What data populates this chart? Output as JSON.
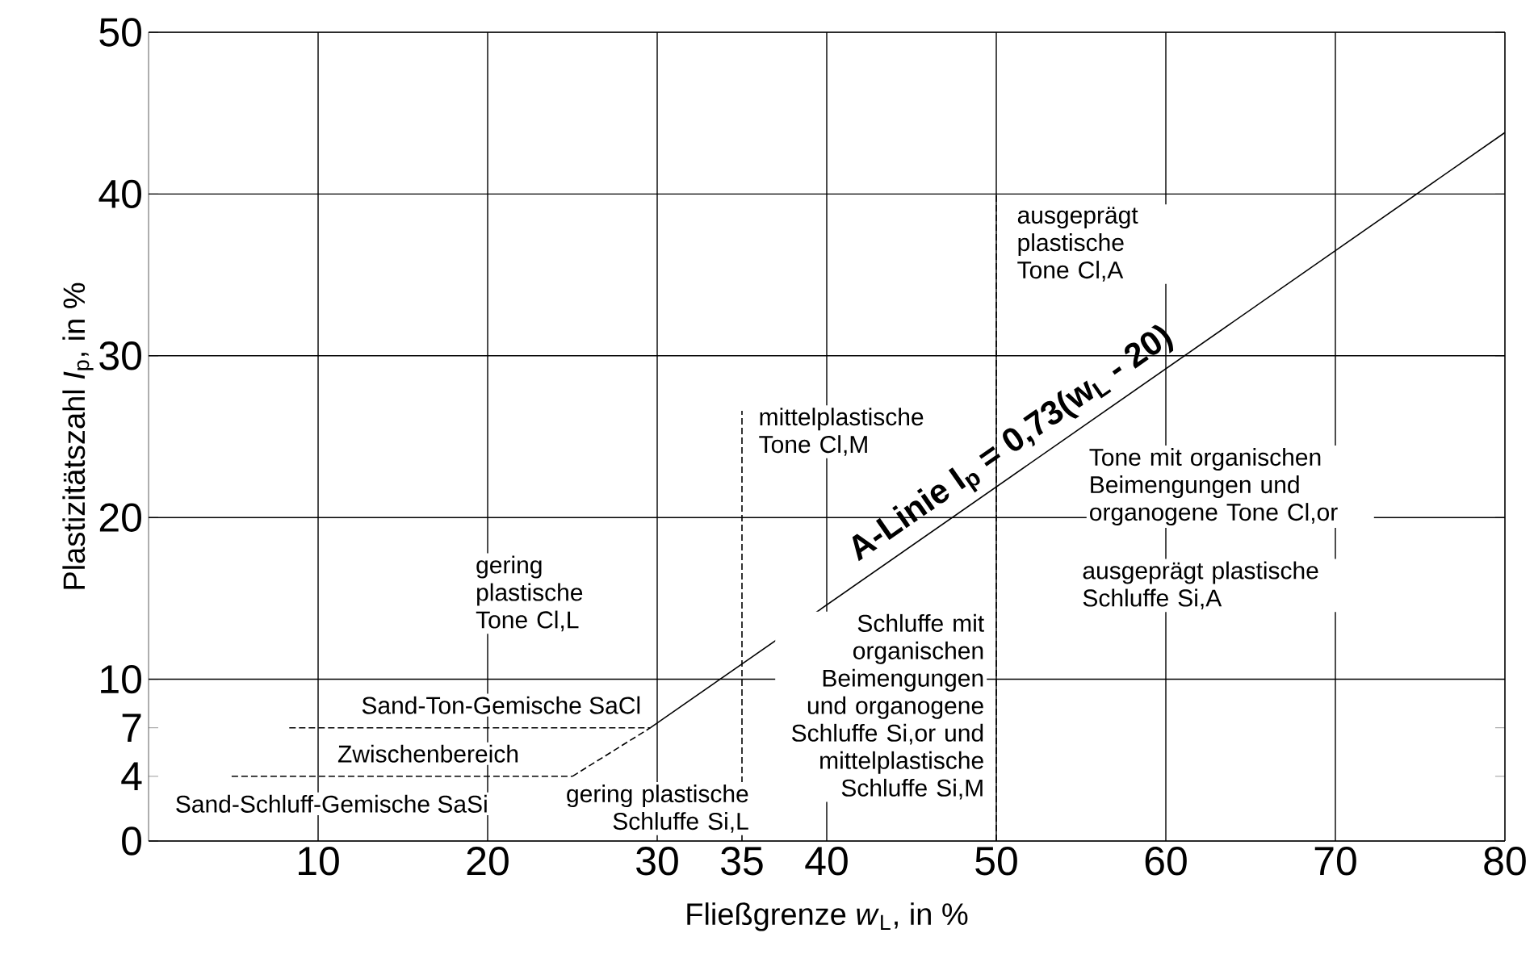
{
  "chart_data": {
    "type": "line",
    "xlabel": "Fließgrenze *w*$_{L}$, in %",
    "ylabel": "Plastizitätszahl *I*$_{p}$, in %",
    "xlim": [
      0,
      80
    ],
    "ylim": [
      0,
      50
    ],
    "xticks": [
      10,
      20,
      30,
      35,
      40,
      50,
      60,
      70,
      80
    ],
    "yticks": [
      0,
      4,
      7,
      10,
      20,
      30,
      40,
      50
    ],
    "grid": true,
    "series": [
      {
        "x": [
          29.6,
          80
        ],
        "values": [
          7,
          43.8
        ],
        "color": "#000000",
        "line_style": "solid"
      },
      {
        "x": [
          25,
          29.6
        ],
        "values": [
          4,
          7
        ],
        "color": "#000000",
        "line_style": "dashed"
      },
      {
        "x": [
          8.3,
          29.6
        ],
        "values": [
          7,
          7
        ],
        "color": "#000000",
        "line_style": "dashed"
      },
      {
        "x": [
          4.9,
          25
        ],
        "values": [
          4,
          4
        ],
        "color": "#000000",
        "line_style": "dashed"
      },
      {
        "x": [
          35,
          35
        ],
        "values": [
          0,
          26.6
        ],
        "color": "#000000",
        "line_style": "dashed"
      },
      {
        "x": [
          50,
          50
        ],
        "values": [
          0,
          40
        ],
        "color": "#000000",
        "line_style": "dashed"
      }
    ],
    "annotations": [
      "A-Linie I$_{p}$ = 0,73(w$_{L}$ - 20)",
      "Sand-Ton-Gemische SaCl",
      "Zwischenbereich",
      "Sand-Schluff-Gemische SaSi",
      "gering plastische Schluffe Si,L",
      "gering plastische Tone Cl,L",
      "mittelplastische Tone Cl,M",
      "ausgeprägt plastische Tone Cl,A",
      "Tone mit organischen Beimengungen und organogene Tone Cl,or",
      "ausgeprägt plastische Schluffe Si,A",
      "Schluffe mit organischen Beimengungen und organogene Schluffe Si,or und mittelplastische Schluffe Si,M"
    ]
  }
}
